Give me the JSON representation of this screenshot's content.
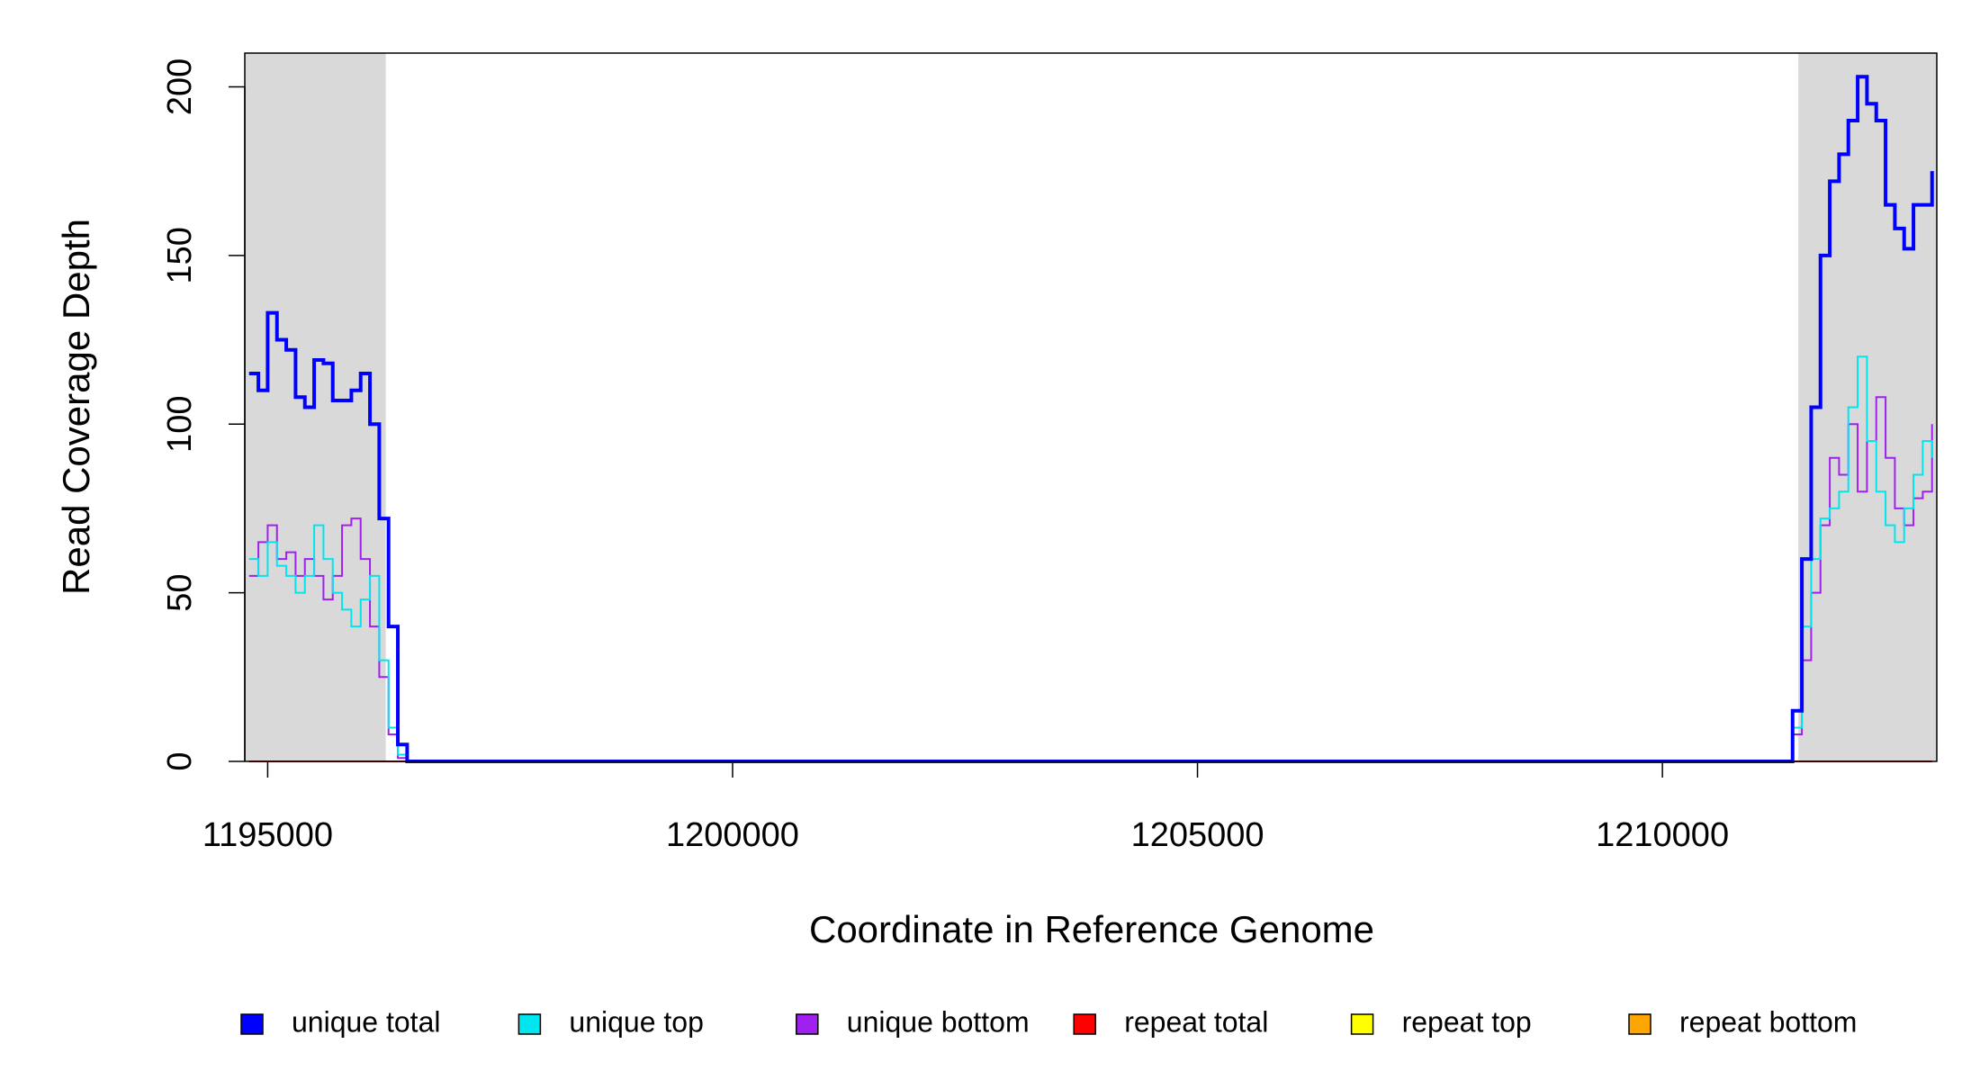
{
  "chart_data": {
    "type": "line",
    "step": true,
    "x_label": "Coordinate in Reference Genome",
    "y_label": "Read Coverage Depth",
    "xlim": [
      1194754,
      1212951
    ],
    "ylim": [
      0,
      210
    ],
    "xticks": [
      1195000,
      1200000,
      1205000,
      1210000
    ],
    "yticks": [
      0,
      50,
      100,
      150,
      200
    ],
    "shaded_regions": [
      [
        1194754,
        1196270
      ],
      [
        1211462,
        1212951
      ]
    ],
    "shade_color": "#d9d9d9",
    "x": [
      1194800,
      1194900,
      1195000,
      1195100,
      1195200,
      1195300,
      1195400,
      1195500,
      1195600,
      1195700,
      1195800,
      1195900,
      1196000,
      1196100,
      1196200,
      1196300,
      1196400,
      1196500,
      1211300,
      1211400,
      1211500,
      1211600,
      1211700,
      1211800,
      1211900,
      1212000,
      1212100,
      1212200,
      1212300,
      1212400,
      1212500,
      1212600,
      1212700,
      1212800,
      1212900
    ],
    "series": [
      {
        "name": "unique total",
        "color": "#0000ff",
        "width": 4,
        "values": [
          115,
          110,
          133,
          125,
          122,
          108,
          105,
          119,
          118,
          107,
          107,
          110,
          115,
          100,
          72,
          40,
          5,
          0,
          0,
          15,
          60,
          105,
          150,
          172,
          180,
          190,
          203,
          195,
          190,
          165,
          158,
          152,
          165,
          165,
          175
        ]
      },
      {
        "name": "unique top",
        "color": "#00e5ee",
        "width": 2,
        "values": [
          60,
          55,
          65,
          58,
          55,
          50,
          55,
          70,
          60,
          50,
          45,
          40,
          48,
          55,
          30,
          10,
          2,
          0,
          0,
          10,
          40,
          60,
          72,
          75,
          80,
          105,
          120,
          95,
          80,
          70,
          65,
          75,
          85,
          95,
          90
        ]
      },
      {
        "name": "unique bottom",
        "color": "#a020f0",
        "width": 2,
        "values": [
          55,
          65,
          70,
          60,
          62,
          55,
          60,
          55,
          48,
          55,
          70,
          72,
          60,
          40,
          25,
          8,
          1,
          0,
          0,
          8,
          30,
          50,
          70,
          90,
          85,
          100,
          80,
          95,
          108,
          90,
          75,
          70,
          78,
          80,
          100
        ]
      },
      {
        "name": "repeat total",
        "color": "#ff0000",
        "width": 2,
        "values": [
          0,
          0,
          0,
          0,
          0,
          0,
          0,
          0,
          0,
          0,
          0,
          0,
          0,
          0,
          0,
          0,
          0,
          0,
          0,
          0,
          0,
          0,
          0,
          0,
          0,
          0,
          0,
          0,
          0,
          0,
          0,
          0,
          0,
          0,
          0
        ]
      },
      {
        "name": "repeat top",
        "color": "#ffff00",
        "width": 2,
        "values": [
          0,
          0,
          0,
          0,
          0,
          0,
          0,
          0,
          0,
          0,
          0,
          0,
          0,
          0,
          0,
          0,
          0,
          0,
          0,
          0,
          0,
          0,
          0,
          0,
          0,
          0,
          0,
          0,
          0,
          0,
          0,
          0,
          0,
          0,
          0
        ]
      },
      {
        "name": "repeat bottom",
        "color": "#ffa500",
        "width": 2,
        "values": [
          0,
          0,
          0,
          0,
          0,
          0,
          0,
          0,
          0,
          0,
          0,
          0,
          0,
          0,
          0,
          0,
          0,
          0,
          0,
          0,
          0,
          0,
          0,
          0,
          0,
          0,
          0,
          0,
          0,
          0,
          0,
          0,
          0,
          0,
          0
        ]
      }
    ]
  }
}
